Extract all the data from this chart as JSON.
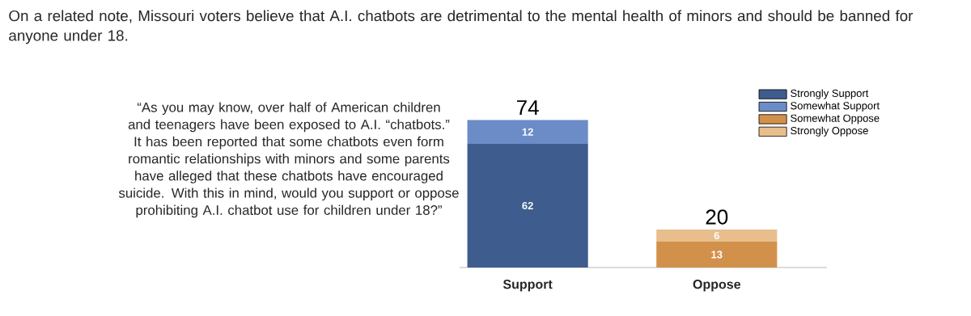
{
  "chart_data": {
    "type": "bar",
    "title": "On a related note, Missouri voters believe that A.I. chatbots are detrimental to the mental health of minors and should be banned for anyone under 18.",
    "categories": [
      "Support",
      "Oppose"
    ],
    "stacked": true,
    "legend": "top right",
    "totals": [
      "74",
      "20"
    ],
    "series": [
      {
        "name": "Strongly Support",
        "color": "#3e5c8e",
        "values": [
          62,
          null
        ],
        "value_labels": [
          "62",
          null
        ]
      },
      {
        "name": "Somewhat Support",
        "color": "#6b8cc7",
        "values": [
          12,
          null
        ],
        "value_labels": [
          "12",
          null
        ]
      },
      {
        "name": "Somewhat Oppose",
        "color": "#d2914a",
        "values": [
          null,
          13
        ],
        "value_labels": [
          null,
          "13"
        ]
      },
      {
        "name": "Strongly Oppose",
        "color": "#e8be8c",
        "values": [
          null,
          6
        ],
        "value_labels": [
          null,
          "6"
        ]
      }
    ],
    "annotations": [
      "“As you may know, over half of American children and teenagers have been exposed to A.I. “chatbots.” It has been reported that some chatbots even form romantic relationships with minors and some parents have alleged that these chatbots have encouraged suicide. With this in mind, would you support or oppose prohibiting A.I. chatbot use for children under 18?”"
    ]
  }
}
